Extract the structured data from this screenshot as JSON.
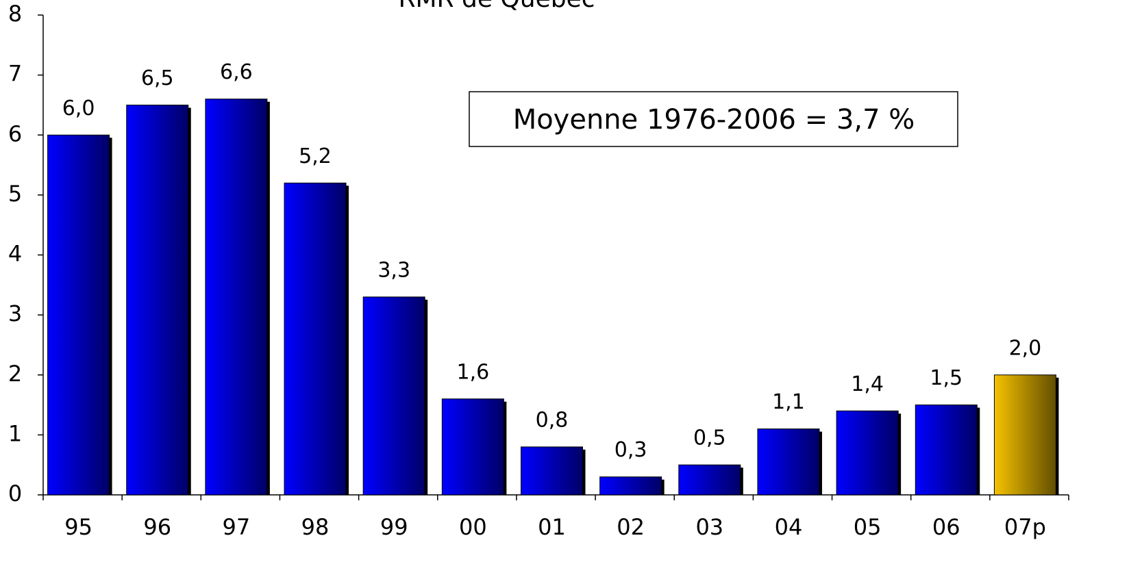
{
  "chart_data": {
    "type": "bar",
    "title": "RMR de Québec",
    "categories": [
      "95",
      "96",
      "97",
      "98",
      "99",
      "00",
      "01",
      "02",
      "03",
      "04",
      "05",
      "06",
      "07p"
    ],
    "values": [
      6.0,
      6.5,
      6.6,
      5.2,
      3.3,
      1.6,
      0.8,
      0.3,
      0.5,
      1.1,
      1.4,
      1.5,
      2.0
    ],
    "value_labels": [
      "6,0",
      "6,5",
      "6,6",
      "5,2",
      "3,3",
      "1,6",
      "0,8",
      "0,3",
      "0,5",
      "1,1",
      "1,4",
      "1,5",
      "2,0"
    ],
    "colors": [
      "#0000ff",
      "#0000ff",
      "#0000ff",
      "#0000ff",
      "#0000ff",
      "#0000ff",
      "#0000ff",
      "#0000ff",
      "#0000ff",
      "#0000ff",
      "#0000ff",
      "#0000ff",
      "#f5c200"
    ],
    "ylim": [
      0,
      8
    ],
    "yticks": [
      0,
      1,
      2,
      3,
      4,
      5,
      6,
      7,
      8
    ],
    "annotation": "Moyenne 1976-2006 = 3,7 %"
  }
}
